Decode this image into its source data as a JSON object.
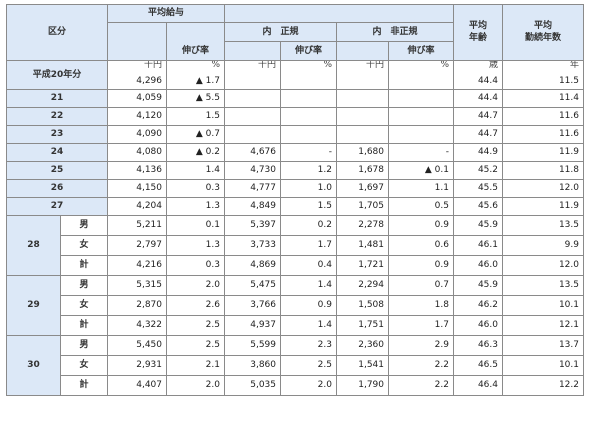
{
  "headers": {
    "category": "区分",
    "avg_salary": "平均給与",
    "growth": "伸び率",
    "regular": "内　正規",
    "regular_growth": "伸び率",
    "nonregular": "内　非正規",
    "nonregular_growth": "伸び率",
    "avg_age": "平均\n年齢",
    "avg_tenure": "平均\n勤続年数"
  },
  "units": {
    "salary": "千円",
    "growth": "%",
    "regular": "千円",
    "regular_growth": "%",
    "nonregular": "千円",
    "nonregular_growth": "%",
    "age": "歳",
    "tenure": "年"
  },
  "rows": [
    {
      "label": "平成20年分",
      "salary": "4,296",
      "growth": "▲ 1.7",
      "regular": "",
      "regular_growth": "",
      "nonregular": "",
      "nonregular_growth": "",
      "age": "44.4",
      "tenure": "11.5"
    },
    {
      "label": "21",
      "salary": "4,059",
      "growth": "▲ 5.5",
      "regular": "",
      "regular_growth": "",
      "nonregular": "",
      "nonregular_growth": "",
      "age": "44.4",
      "tenure": "11.4"
    },
    {
      "label": "22",
      "salary": "4,120",
      "growth": "1.5",
      "regular": "",
      "regular_growth": "",
      "nonregular": "",
      "nonregular_growth": "",
      "age": "44.7",
      "tenure": "11.6"
    },
    {
      "label": "23",
      "salary": "4,090",
      "growth": "▲ 0.7",
      "regular": "",
      "regular_growth": "",
      "nonregular": "",
      "nonregular_growth": "",
      "age": "44.7",
      "tenure": "11.6"
    },
    {
      "label": "24",
      "salary": "4,080",
      "growth": "▲ 0.2",
      "regular": "4,676",
      "regular_growth": "-",
      "nonregular": "1,680",
      "nonregular_growth": "-",
      "age": "44.9",
      "tenure": "11.9"
    },
    {
      "label": "25",
      "salary": "4,136",
      "growth": "1.4",
      "regular": "4,730",
      "regular_growth": "1.2",
      "nonregular": "1,678",
      "nonregular_growth": "▲ 0.1",
      "age": "45.2",
      "tenure": "11.8"
    },
    {
      "label": "26",
      "salary": "4,150",
      "growth": "0.3",
      "regular": "4,777",
      "regular_growth": "1.0",
      "nonregular": "1,697",
      "nonregular_growth": "1.1",
      "age": "45.5",
      "tenure": "12.0"
    },
    {
      "label": "27",
      "salary": "4,204",
      "growth": "1.3",
      "regular": "4,849",
      "regular_growth": "1.5",
      "nonregular": "1,705",
      "nonregular_growth": "0.5",
      "age": "45.6",
      "tenure": "11.9"
    }
  ],
  "groups": [
    {
      "label": "28",
      "rows": [
        {
          "sub": "男",
          "salary": "5,211",
          "growth": "0.1",
          "regular": "5,397",
          "regular_growth": "0.2",
          "nonregular": "2,278",
          "nonregular_growth": "0.9",
          "age": "45.9",
          "tenure": "13.5"
        },
        {
          "sub": "女",
          "salary": "2,797",
          "growth": "1.3",
          "regular": "3,733",
          "regular_growth": "1.7",
          "nonregular": "1,481",
          "nonregular_growth": "0.6",
          "age": "46.1",
          "tenure": "9.9"
        },
        {
          "sub": "計",
          "salary": "4,216",
          "growth": "0.3",
          "regular": "4,869",
          "regular_growth": "0.4",
          "nonregular": "1,721",
          "nonregular_growth": "0.9",
          "age": "46.0",
          "tenure": "12.0"
        }
      ]
    },
    {
      "label": "29",
      "rows": [
        {
          "sub": "男",
          "salary": "5,315",
          "growth": "2.0",
          "regular": "5,475",
          "regular_growth": "1.4",
          "nonregular": "2,294",
          "nonregular_growth": "0.7",
          "age": "45.9",
          "tenure": "13.5"
        },
        {
          "sub": "女",
          "salary": "2,870",
          "growth": "2.6",
          "regular": "3,766",
          "regular_growth": "0.9",
          "nonregular": "1,508",
          "nonregular_growth": "1.8",
          "age": "46.2",
          "tenure": "10.1"
        },
        {
          "sub": "計",
          "salary": "4,322",
          "growth": "2.5",
          "regular": "4,937",
          "regular_growth": "1.4",
          "nonregular": "1,751",
          "nonregular_growth": "1.7",
          "age": "46.0",
          "tenure": "12.1"
        }
      ]
    },
    {
      "label": "30",
      "rows": [
        {
          "sub": "男",
          "salary": "5,450",
          "growth": "2.5",
          "regular": "5,599",
          "regular_growth": "2.3",
          "nonregular": "2,360",
          "nonregular_growth": "2.9",
          "age": "46.3",
          "tenure": "13.7"
        },
        {
          "sub": "女",
          "salary": "2,931",
          "growth": "2.1",
          "regular": "3,860",
          "regular_growth": "2.5",
          "nonregular": "1,541",
          "nonregular_growth": "2.2",
          "age": "46.5",
          "tenure": "10.1"
        },
        {
          "sub": "計",
          "salary": "4,407",
          "growth": "2.0",
          "regular": "5,035",
          "regular_growth": "2.0",
          "nonregular": "1,790",
          "nonregular_growth": "2.2",
          "age": "46.4",
          "tenure": "12.2"
        }
      ]
    }
  ]
}
